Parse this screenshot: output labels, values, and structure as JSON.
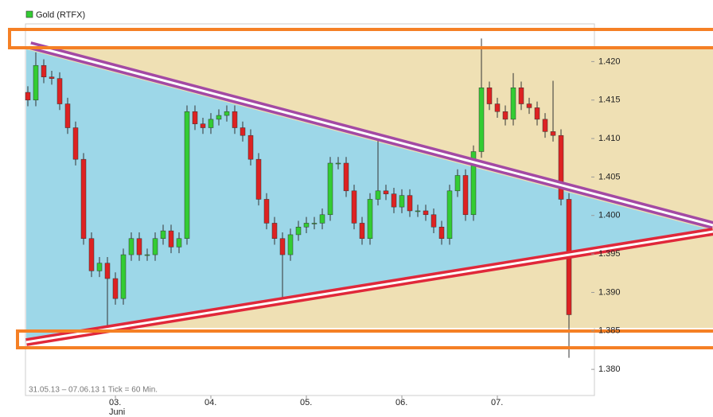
{
  "chart_data": {
    "type": "candlestick",
    "footer": "31.05.13 – 07.06.13   1 Tick = 60 Min.",
    "categories": [
      null,
      null,
      null,
      null,
      null,
      null,
      null,
      null,
      null,
      null,
      null,
      "03.",
      null,
      null,
      null,
      null,
      null,
      null,
      null,
      null,
      null,
      null,
      null,
      "04.",
      null,
      null,
      null,
      null,
      null,
      null,
      null,
      null,
      null,
      null,
      null,
      "05.",
      null,
      null,
      null,
      null,
      null,
      null,
      null,
      null,
      null,
      null,
      null,
      "06.",
      null,
      null,
      null,
      null,
      null,
      null,
      null,
      null,
      null,
      null,
      null,
      "07.",
      null,
      null,
      null,
      null,
      null,
      null,
      null,
      null,
      null
    ],
    "x_sublabel": "Juni",
    "series": [
      {
        "name": "Gold (RTFX)",
        "up_color": "#33cc33",
        "down_color": "#dd2222",
        "open": [
          1.416,
          1.415,
          1.4195,
          1.418,
          1.4178,
          1.4145,
          1.4114,
          1.4073,
          1.397,
          1.3928,
          1.3938,
          1.3918,
          1.3892,
          1.3949,
          1.397,
          1.3949,
          1.3949,
          1.397,
          1.398,
          1.3959,
          1.397,
          1.4135,
          1.4119,
          1.4114,
          1.4125,
          1.413,
          1.4135,
          1.4114,
          1.4104,
          1.4073,
          1.4021,
          1.399,
          1.397,
          1.3949,
          1.3975,
          1.3985,
          1.399,
          1.399,
          1.4001,
          1.4068,
          1.4068,
          1.4032,
          1.399,
          1.397,
          1.4021,
          1.4032,
          1.4028,
          1.4011,
          1.4026,
          1.4006,
          1.4006,
          1.4001,
          1.3985,
          1.397,
          1.4032,
          1.4052,
          1.4001,
          1.4083,
          1.4166,
          1.4145,
          1.4135,
          1.4125,
          1.4166,
          1.4145,
          1.414,
          1.4125,
          1.4109,
          1.4104,
          1.4021
        ],
        "high": [
          1.4168,
          1.4212,
          1.4203,
          1.4188,
          1.4186,
          1.4153,
          1.4122,
          1.4081,
          1.3978,
          1.3946,
          1.3946,
          1.3926,
          1.3957,
          1.3978,
          1.3978,
          1.3957,
          1.3978,
          1.3988,
          1.3988,
          1.3978,
          1.4143,
          1.4143,
          1.4127,
          1.4133,
          1.4138,
          1.4143,
          1.4143,
          1.4122,
          1.4112,
          1.4081,
          1.4029,
          1.3998,
          1.3978,
          1.3983,
          1.3993,
          1.3998,
          1.3998,
          1.4009,
          1.4076,
          1.4076,
          1.4076,
          1.404,
          1.3998,
          1.4029,
          1.41,
          1.404,
          1.4036,
          1.4034,
          1.4034,
          1.4014,
          1.4014,
          1.4009,
          1.3993,
          1.404,
          1.406,
          1.406,
          1.4091,
          1.423,
          1.4174,
          1.4153,
          1.4143,
          1.4185,
          1.4174,
          1.4153,
          1.4148,
          1.4133,
          1.4175,
          1.4112,
          1.4029
        ],
        "low": [
          1.4142,
          1.4142,
          1.4172,
          1.417,
          1.4137,
          1.4106,
          1.4065,
          1.3962,
          1.392,
          1.392,
          1.3856,
          1.3884,
          1.3884,
          1.3941,
          1.3941,
          1.3941,
          1.3941,
          1.3962,
          1.3951,
          1.3951,
          1.3962,
          1.4111,
          1.4106,
          1.4106,
          1.4117,
          1.4122,
          1.4106,
          1.4096,
          1.4065,
          1.4013,
          1.3982,
          1.3962,
          1.389,
          1.3941,
          1.3967,
          1.3977,
          1.3982,
          1.3982,
          1.3993,
          1.406,
          1.4024,
          1.3982,
          1.3962,
          1.3962,
          1.4013,
          1.402,
          1.4003,
          1.4003,
          1.3998,
          1.3998,
          1.3993,
          1.3977,
          1.3962,
          1.3962,
          1.4024,
          1.3993,
          1.3993,
          1.4075,
          1.4137,
          1.4127,
          1.4117,
          1.4117,
          1.4137,
          1.4132,
          1.4117,
          1.4101,
          1.4096,
          1.4013,
          1.3815
        ],
        "close": [
          1.415,
          1.4195,
          1.418,
          1.4178,
          1.4145,
          1.4114,
          1.4073,
          1.397,
          1.3928,
          1.3938,
          1.3918,
          1.3892,
          1.3949,
          1.397,
          1.3949,
          1.3949,
          1.397,
          1.398,
          1.3959,
          1.397,
          1.4135,
          1.4119,
          1.4114,
          1.4125,
          1.413,
          1.4135,
          1.4114,
          1.4104,
          1.4073,
          1.4021,
          1.399,
          1.397,
          1.3949,
          1.3975,
          1.3985,
          1.399,
          1.399,
          1.4001,
          1.4068,
          1.4068,
          1.4032,
          1.399,
          1.397,
          1.4021,
          1.4032,
          1.4028,
          1.4011,
          1.4026,
          1.4006,
          1.4006,
          1.4001,
          1.3985,
          1.397,
          1.4032,
          1.4052,
          1.4001,
          1.4083,
          1.4166,
          1.4145,
          1.4135,
          1.4125,
          1.4166,
          1.4145,
          1.414,
          1.4125,
          1.4109,
          1.4104,
          1.4021,
          1.3871
        ]
      }
    ],
    "ylim": [
      1.3766,
      1.4249
    ],
    "yticks": [
      {
        "value": 1.38,
        "label": "1.380"
      },
      1.385,
      {
        "value": 1.39,
        "label": "1.390"
      },
      1.395,
      {
        "value": 1.4,
        "label": "1.400"
      },
      1.405,
      {
        "value": 1.41,
        "label": "1.410"
      },
      1.415,
      {
        "value": 1.42,
        "label": "1.420"
      }
    ],
    "grid": false
  }
}
